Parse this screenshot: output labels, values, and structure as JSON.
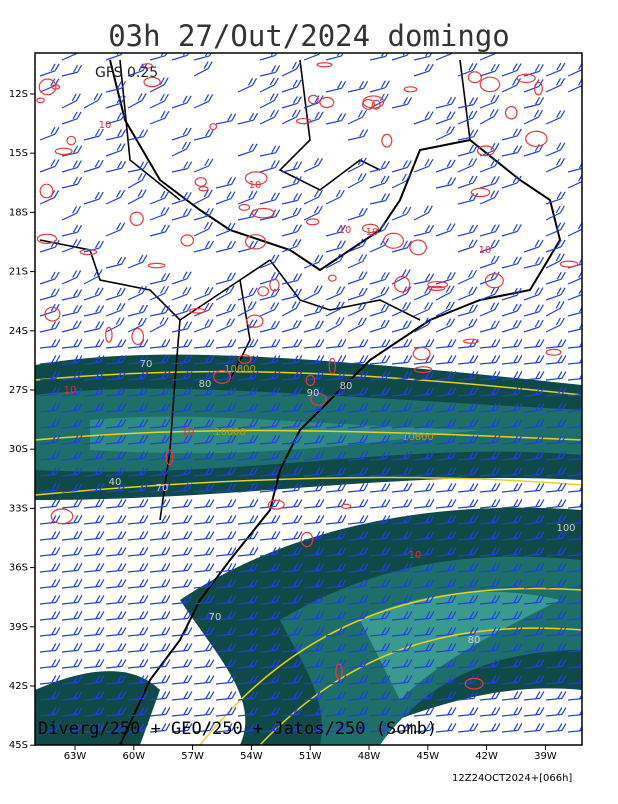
{
  "header": {
    "title": "03h 27/Out/2024 domingo"
  },
  "map": {
    "model": "GFS 0.25",
    "lat_labels": [
      "12S",
      "15S",
      "18S",
      "21S",
      "24S",
      "27S",
      "30S",
      "33S",
      "36S",
      "39S",
      "42S",
      "45S"
    ],
    "lon_labels": [
      "63W",
      "60W",
      "57W",
      "54W",
      "51W",
      "48W",
      "45W",
      "42W",
      "39W"
    ],
    "contour_labels": [
      "10",
      "10",
      "10",
      "10",
      "10",
      "10",
      "10",
      "10",
      "80",
      "90",
      "80",
      "70",
      "40",
      "10800",
      "10800",
      "10800",
      "100",
      "70",
      "70",
      "80"
    ],
    "caption": "Diverg/250 + GEO/250 + Jatos/250 (Somb)"
  },
  "footer": "12Z24OCT2024+[066h]"
}
